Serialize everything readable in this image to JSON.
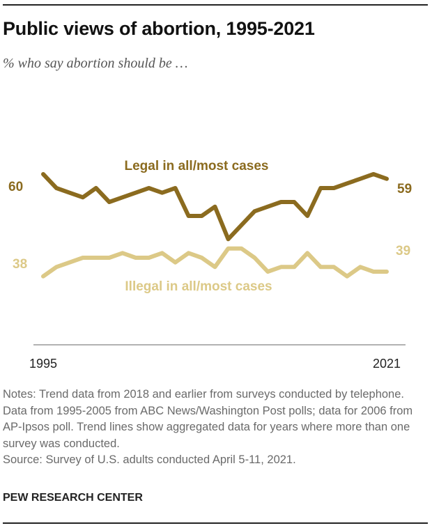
{
  "header": {
    "title": "Public views of abortion, 1995-2021",
    "subtitle": "% who say abortion should be …"
  },
  "chart_data": {
    "type": "line",
    "title": "Public views of abortion, 1995-2021",
    "xlabel": "",
    "ylabel": "",
    "x": [
      1995,
      1996,
      1997,
      1998,
      1999,
      2000,
      2001,
      2002,
      2003,
      2004,
      2005,
      2006,
      2007,
      2008,
      2009,
      2010,
      2011,
      2012,
      2013,
      2014,
      2015,
      2016,
      2017,
      2018,
      2019,
      2020,
      2021
    ],
    "x_tick_labels": [
      "1995",
      "2021"
    ],
    "ylim": [
      33,
      66
    ],
    "grid": false,
    "series": [
      {
        "name": "Legal in all/most cases",
        "color": "#8b6b1f",
        "start_label": "60",
        "end_label": "59",
        "values": [
          60,
          57,
          56,
          55,
          57,
          54,
          55,
          56,
          57,
          56,
          57,
          51,
          51,
          53,
          46,
          49,
          52,
          53,
          54,
          54,
          51,
          57,
          57,
          58,
          59,
          60,
          59
        ]
      },
      {
        "name": "Illegal in all/most cases",
        "color": "#dcc987",
        "start_label": "38",
        "end_label": "39",
        "values": [
          38,
          40,
          41,
          42,
          42,
          42,
          43,
          42,
          42,
          43,
          41,
          43,
          42,
          40,
          44,
          44,
          42,
          39,
          40,
          40,
          43,
          40,
          40,
          38,
          40,
          39,
          39
        ]
      }
    ]
  },
  "notes": {
    "text": "Notes: Trend data from 2018 and earlier from surveys conducted by telephone. Data from 1995-2005 from ABC News/Washington Post polls; data for 2006 from AP-Ipsos poll. Trend lines show aggregated data for years where more than one survey was conducted.",
    "source": "Source: Survey of U.S. adults conducted April 5-11, 2021."
  },
  "brand": "PEW RESEARCH CENTER"
}
